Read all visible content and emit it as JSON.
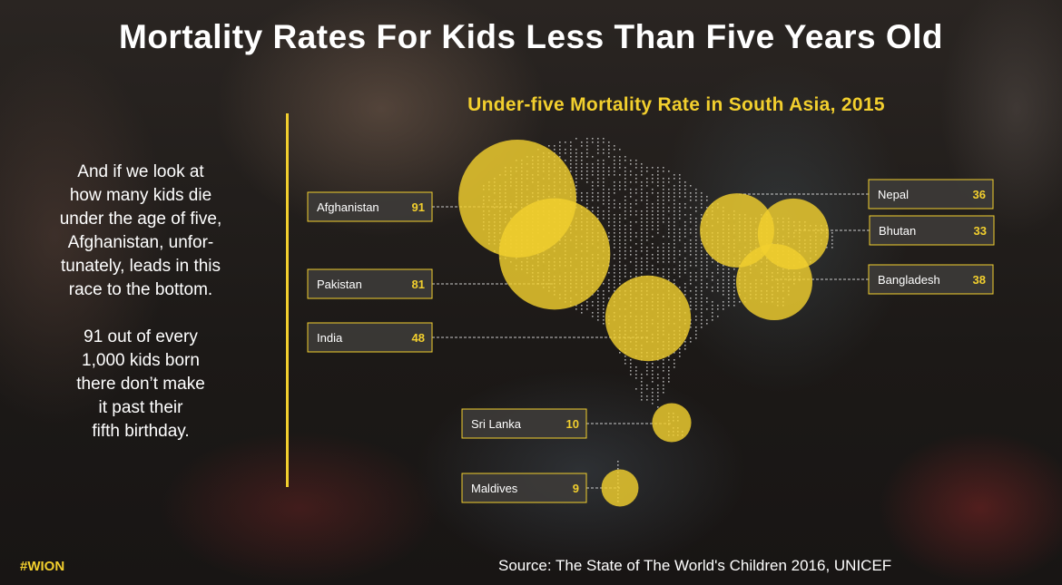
{
  "header": {
    "title": "Mortality Rates For Kids Less Than Five Years Old"
  },
  "narrative": {
    "paragraph_1": "And if we look at\nhow many kids die\nunder the age of five,\nAfghanistan, unfor-\ntunately, leads in this\nrace to the bottom.",
    "paragraph_2": "91 out of every\n1,000 kids born\nthere don’t make\nit past their\nfifth birthday."
  },
  "footer": {
    "tag": "#WION",
    "source": "Source: The State of The World's Children 2016, UNICEF"
  },
  "colors": {
    "accent": "#f2cf2e",
    "label_box": "#3d3b39",
    "map_dots": "#d8d8d8"
  },
  "chart_data": {
    "type": "bubble-map",
    "title": "Under-five Mortality Rate in South Asia, 2015",
    "unit": "deaths per 1,000 live births",
    "categories": [
      "Afghanistan",
      "Pakistan",
      "India",
      "Sri Lanka",
      "Maldives",
      "Nepal",
      "Bhutan",
      "Bangladesh"
    ],
    "values": [
      91,
      81,
      48,
      10,
      9,
      36,
      33,
      38
    ]
  }
}
